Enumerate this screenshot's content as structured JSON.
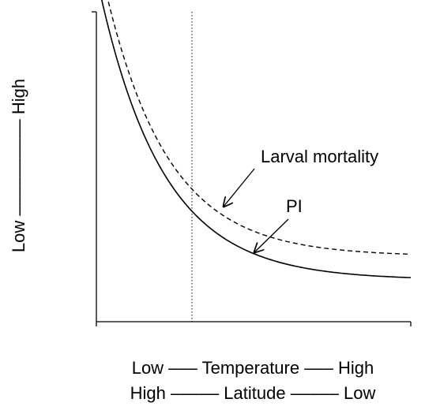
{
  "y_label": "Low –––––––––– High",
  "x_label_lines": [
    "Low ––– Temperature ––– High",
    "High ––––– Latitude ––––– Low"
  ],
  "annotations": [
    "Larval mortality",
    "PI"
  ]
}
